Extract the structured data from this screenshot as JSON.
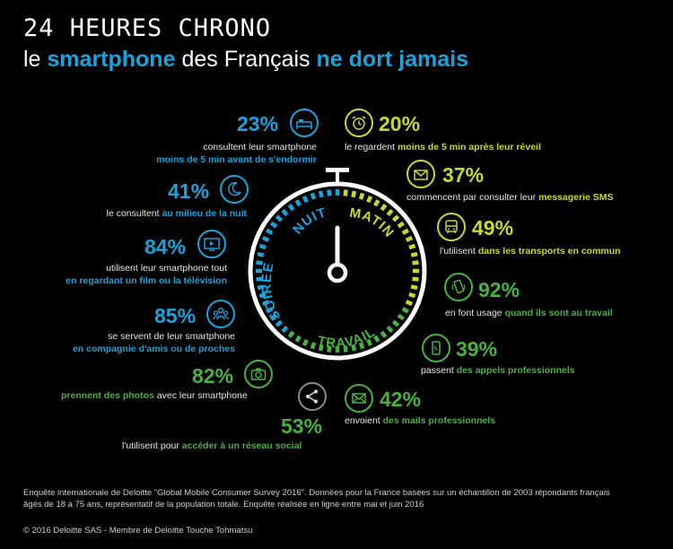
{
  "header": {
    "title": "24 HEURES CHRONO",
    "subtitle_part1": "le ",
    "subtitle_hl1": "smartphone",
    "subtitle_part2": " des Français ",
    "subtitle_hl2": "ne dort jamais"
  },
  "clock": {
    "labels": {
      "nuit": "NUIT",
      "matin": "MATIN",
      "soiree": "SOIREE",
      "travail": "TRAVAIL"
    }
  },
  "stats": {
    "s23": {
      "value": "23%",
      "line1": "consultent leur smartphone",
      "line2": "moins de 5 min avant de s'endormir",
      "icon": "bed-icon"
    },
    "s20": {
      "value": "20%",
      "pre": "le regardent ",
      "hl": "moins de 5 min après leur réveil",
      "icon": "alarm-clock-icon"
    },
    "s41": {
      "value": "41%",
      "pre": "le consultent ",
      "hl": "au milieu de la nuit",
      "icon": "moon-icon"
    },
    "s37": {
      "value": "37%",
      "pre": "commencent par consulter leur ",
      "hl": "messagerie SMS",
      "icon": "envelope-icon"
    },
    "s49": {
      "value": "49%",
      "pre": "l'utilisent ",
      "hl": "dans les transports en commun",
      "icon": "bus-icon"
    },
    "s84": {
      "value": "84%",
      "line1": "utilisent leur smartphone tout",
      "line2": "en regardant un film ou la télévision",
      "icon": "tv-icon"
    },
    "s92": {
      "value": "92%",
      "pre": "en font usage ",
      "hl": "quand ils sont au travail",
      "icon": "phone-vibrate-icon"
    },
    "s85": {
      "value": "85%",
      "line1": "se servent de leur smartphone",
      "line2": "en compagnie d'amis ou de proches",
      "icon": "group-icon"
    },
    "s39": {
      "value": "39%",
      "pre": "passent ",
      "hl": "des appels professionnels",
      "icon": "phone-call-icon"
    },
    "s82": {
      "value": "82%",
      "hl": "prennent des photos",
      "post": " avec leur smartphone",
      "icon": "camera-icon"
    },
    "s42": {
      "value": "42%",
      "pre": "envoient ",
      "hl": "des mails professionnels",
      "icon": "mail-icon"
    },
    "s53": {
      "value": "53%",
      "pre": "l'utilisent pour ",
      "hl": "accéder à un réseau social",
      "icon": "share-icon"
    }
  },
  "footer": {
    "line1": "Enquête internationale de Deloitte \"Global Mobile Consumer Survey 2016\". Données pour la France basées sur un échantillon de 2003 répondants français",
    "line2": "âgés de 18 à 75 ans, représentatif de la population totale. Enquête réalisée en ligne entre mai et juin 2016",
    "copyright": "© 2016 Deloitte SAS - Membre de Deloitte Touche Tohmatsu"
  },
  "colors": {
    "night": "#1aa2dc",
    "morning": "#c5d92d",
    "work": "#47b241",
    "background": "#000000"
  }
}
